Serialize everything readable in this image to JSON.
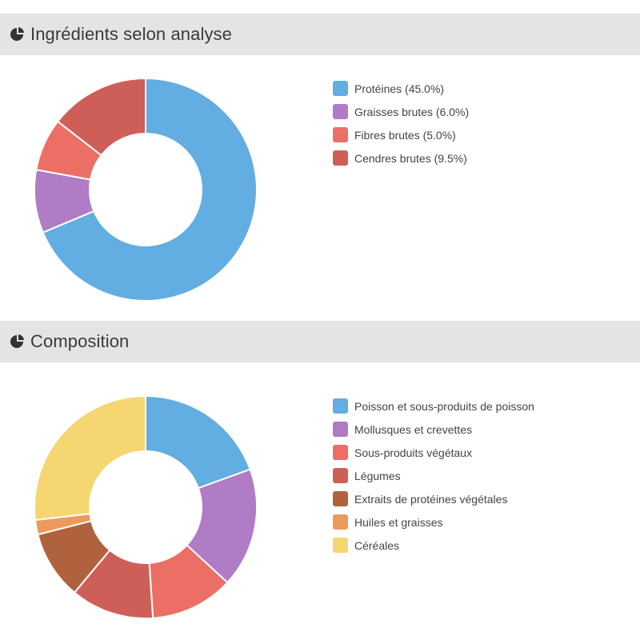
{
  "chart_data": [
    {
      "type": "pie",
      "variant": "donut",
      "title": "Ingrédients selon analyse",
      "start_angle_deg": 0,
      "slices": [
        {
          "label": "Protéines (45.0%)",
          "value": 45.0,
          "color": "#62ade1"
        },
        {
          "label": "Graisses brutes (6.0%)",
          "value": 6.0,
          "color": "#af7cc5"
        },
        {
          "label": "Fibres brutes (5.0%)",
          "value": 5.0,
          "color": "#ec6f66"
        },
        {
          "label": "Cendres brutes (9.5%)",
          "value": 9.5,
          "color": "#cd5f58"
        }
      ],
      "legend": {
        "position": "right"
      }
    },
    {
      "type": "pie",
      "variant": "donut",
      "title": "Composition",
      "start_angle_deg": 0,
      "slices": [
        {
          "label": "Poisson et sous-produits de poisson",
          "value": 18.5,
          "color": "#62ade1"
        },
        {
          "label": "Mollusques et crevettes",
          "value": 16.5,
          "color": "#af7cc5"
        },
        {
          "label": "Sous-produits végétaux",
          "value": 11.5,
          "color": "#ec6f66"
        },
        {
          "label": "Légumes",
          "value": 11.5,
          "color": "#cd5f58"
        },
        {
          "label": "Extraits de protéines végétales",
          "value": 9.5,
          "color": "#b0623f"
        },
        {
          "label": "Huiles et graisses",
          "value": 2.0,
          "color": "#ec9a5c"
        },
        {
          "label": "Céréales",
          "value": 25.5,
          "color": "#f5d671"
        }
      ],
      "legend": {
        "position": "right"
      }
    }
  ],
  "icons": {
    "header_icon": "pie-chart-icon",
    "header_icon_color": "#333333"
  },
  "colors": {
    "header_background": "#e4e5e3",
    "slice_separator": "#ffffff"
  }
}
